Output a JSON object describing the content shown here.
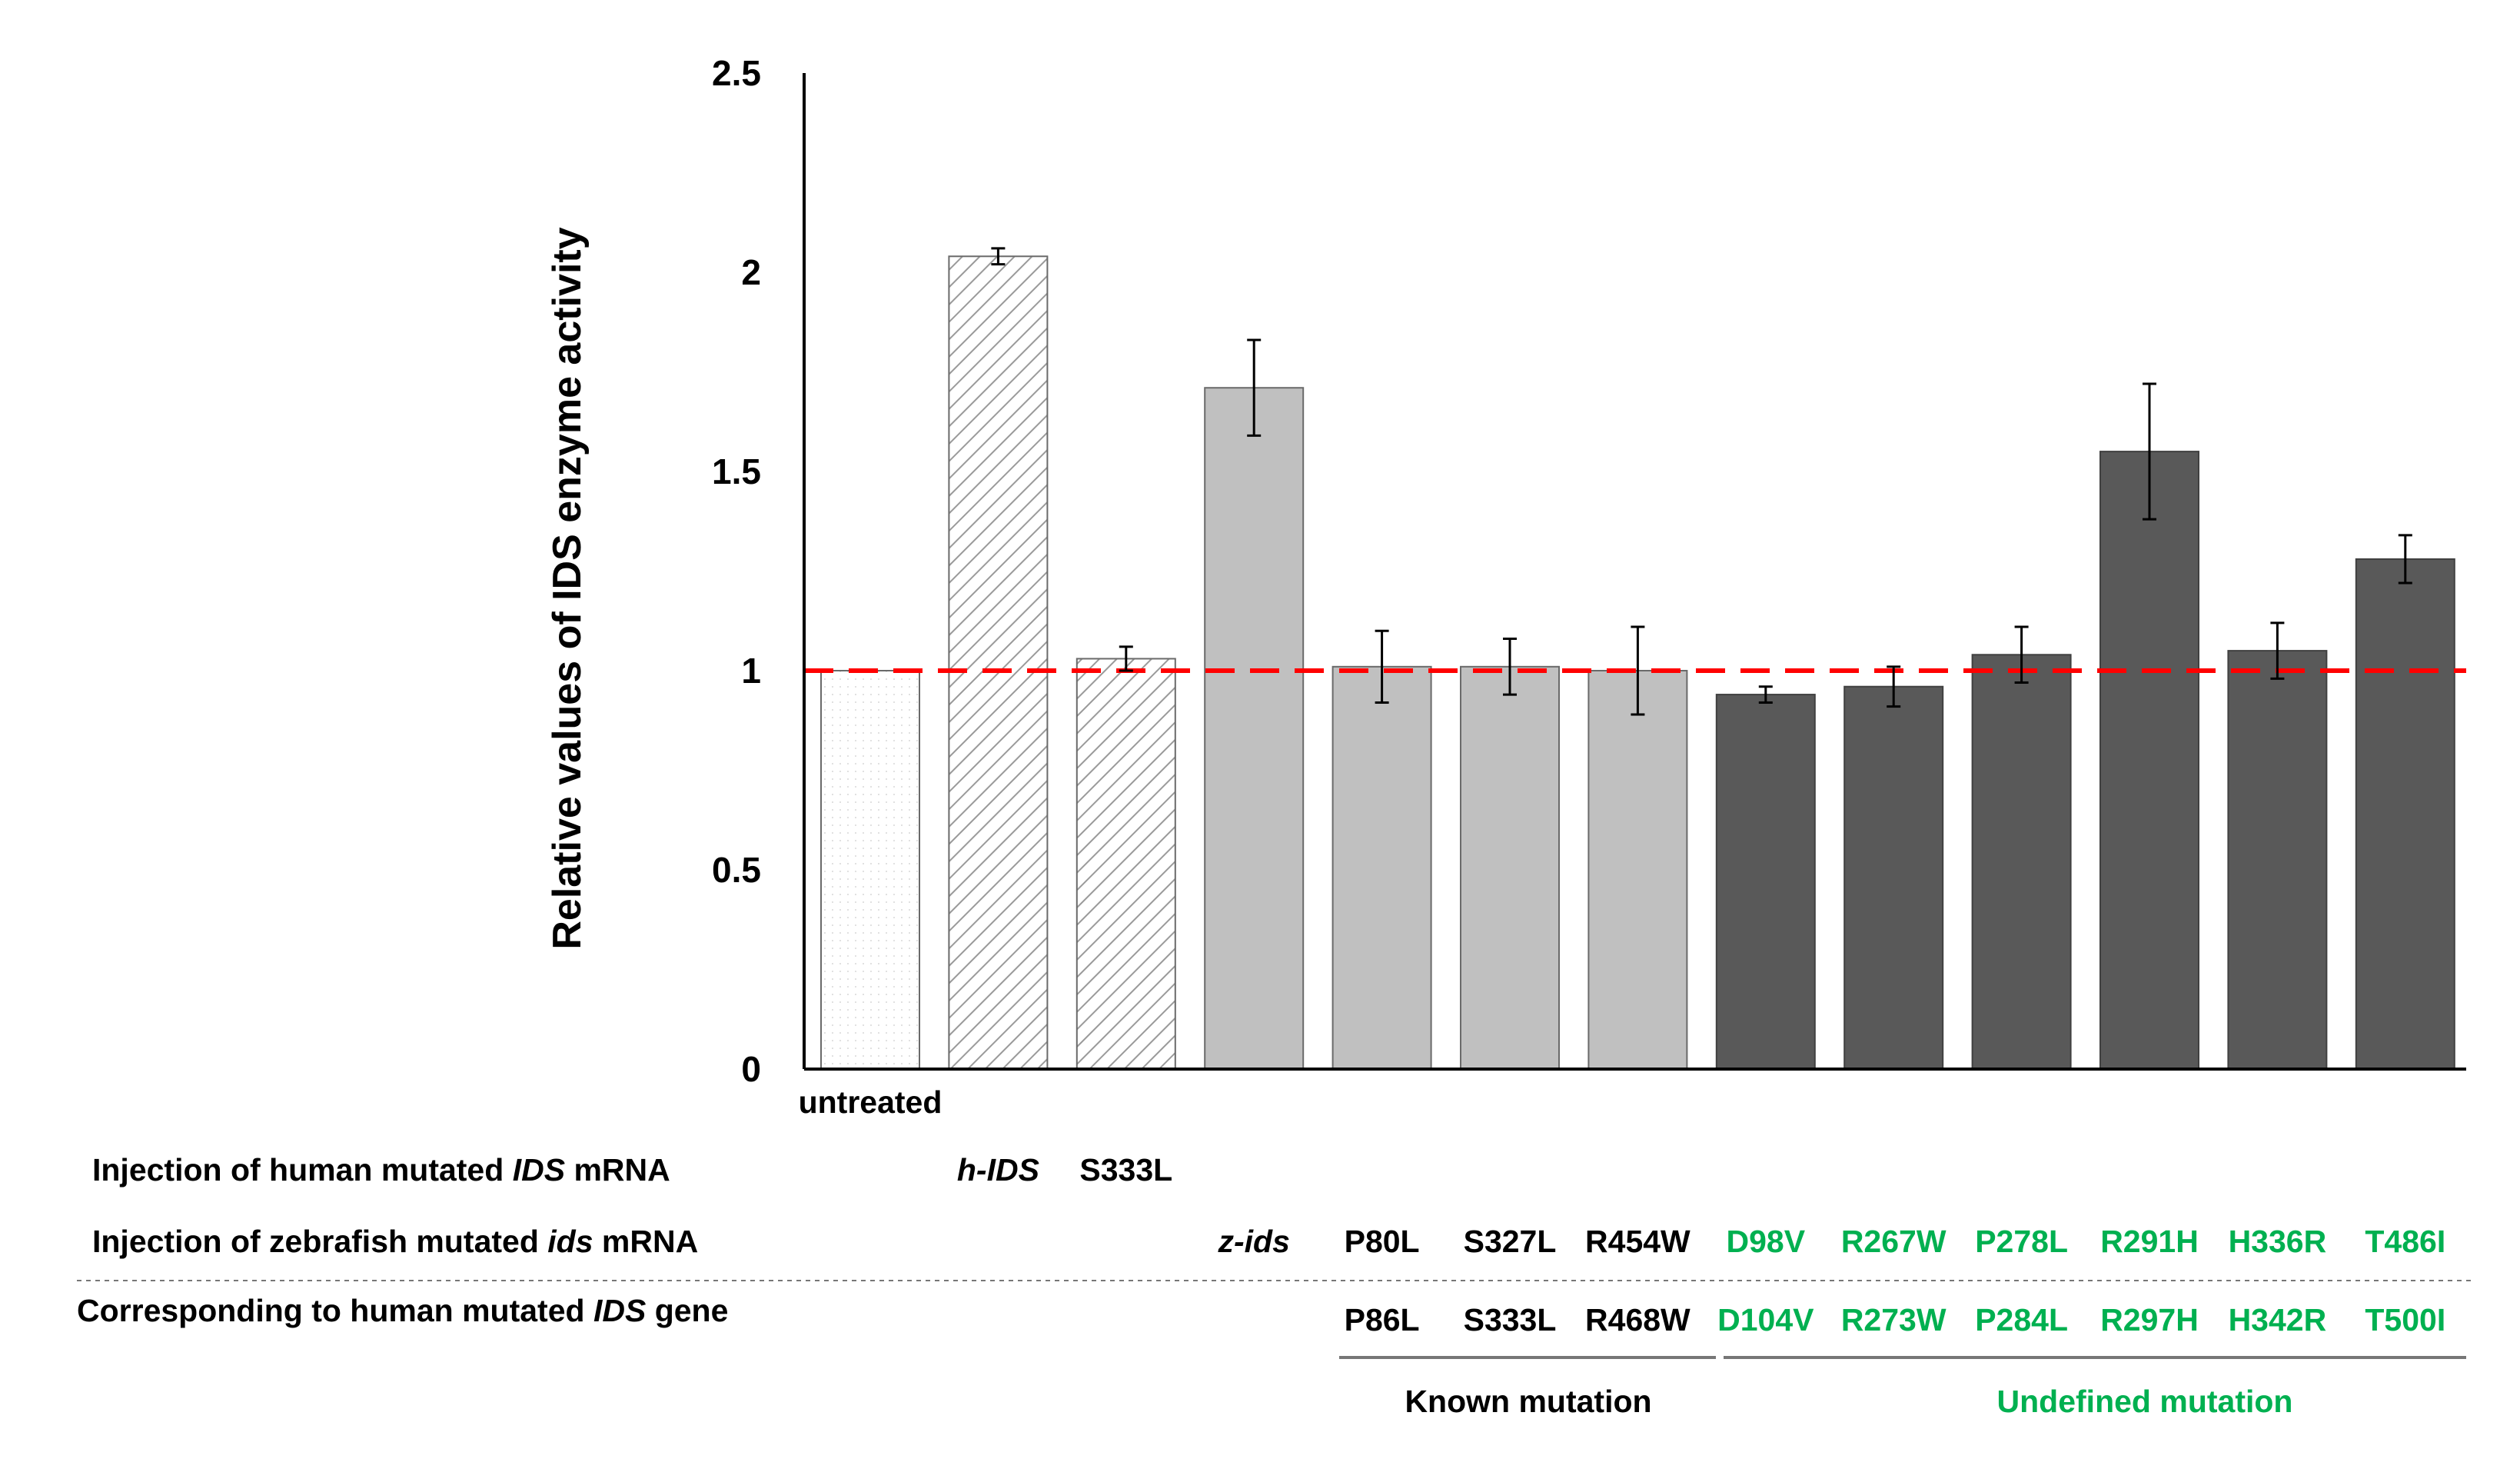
{
  "chart_data": {
    "type": "bar",
    "title": "",
    "xlabel": "",
    "ylabel": "Relative values of IDS enzyme activity",
    "ylim": [
      0,
      2.5
    ],
    "yticks": [
      "0",
      "0.5",
      "1",
      "1.5",
      "2",
      "2.5"
    ],
    "grid": false,
    "reference_line": {
      "y": 1.0,
      "style": "dashed",
      "color": "#ff0000"
    },
    "categories": [
      "untreated",
      "h-IDS",
      "S333L",
      "z-ids",
      "P80L",
      "S327L",
      "R454W",
      "D98V",
      "R267W",
      "P278L",
      "R291H",
      "H336R",
      "T486I"
    ],
    "values": [
      1.0,
      2.04,
      1.03,
      1.71,
      1.01,
      1.01,
      1.0,
      0.94,
      0.96,
      1.04,
      1.55,
      1.05,
      1.28
    ],
    "errors": [
      0.0,
      0.02,
      0.03,
      0.12,
      0.09,
      0.07,
      0.11,
      0.02,
      0.05,
      0.07,
      0.17,
      0.07,
      0.06
    ],
    "bar_styles": [
      "dotted",
      "hatched",
      "hatched",
      "light",
      "light",
      "light",
      "light",
      "dark",
      "dark",
      "dark",
      "dark",
      "dark",
      "dark"
    ],
    "colors": {
      "light": "#c0c0c0",
      "dark": "#595959",
      "reference": "#ff0000",
      "undefined_text": "#00b050",
      "known_text": "#000000"
    },
    "rows": {
      "human": {
        "label_parts": [
          "Injection of human mutated ",
          "IDS",
          " mRNA"
        ],
        "entries": [
          "h-IDS",
          "S333L"
        ]
      },
      "zebrafish": {
        "label_parts": [
          "Injection of zebrafish mutated ",
          "ids",
          " mRNA"
        ],
        "entries": [
          "z-ids",
          "P80L",
          "S327L",
          "R454W",
          "D98V",
          "R267W",
          "P278L",
          "R291H",
          "H336R",
          "T486I"
        ]
      },
      "corresponding": {
        "label_parts": [
          "Corresponding to human mutated ",
          "IDS",
          " gene"
        ],
        "entries": [
          "P86L",
          "S333L",
          "R468W",
          "D104V",
          "R273W",
          "P284L",
          "R297H",
          "H342R",
          "T500I"
        ]
      }
    },
    "groups": [
      {
        "name": "Known mutation",
        "members": [
          "P80L",
          "S327L",
          "R454W"
        ]
      },
      {
        "name": "Undefined mutation",
        "members": [
          "D98V",
          "R267W",
          "P278L",
          "R291H",
          "H336R",
          "T486I"
        ]
      }
    ]
  }
}
